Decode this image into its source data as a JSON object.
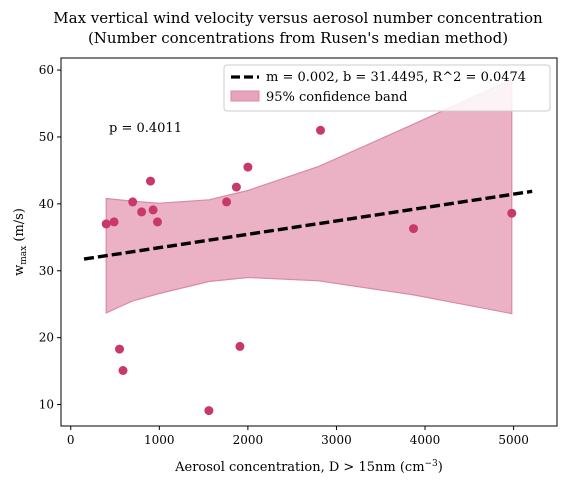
{
  "chart_data": {
    "type": "scatter",
    "title": "Max vertical wind velocity versus aerosol number concentration",
    "subtitle": "(Number concentrations from Rusen's median method)",
    "xlabel": "Aerosol concentration, D > 15nm (cm",
    "xlabel_sup": "−3",
    "xlabel_end": ")",
    "ylabel": "w",
    "ylabel_sub": "max",
    "ylabel_end": " (m/s)",
    "xlim": [
      -110,
      5490
    ],
    "ylim": [
      6.8,
      61.8
    ],
    "xticks": [
      0,
      1000,
      2000,
      3000,
      4000,
      5000
    ],
    "yticks": [
      10,
      20,
      30,
      40,
      50,
      60
    ],
    "grid": false,
    "legend_position": "top-right",
    "annotation": "p = 0.4011",
    "colors": {
      "points": "#c9386a",
      "band_fill": "#e7a3ba",
      "band_edge": "#d98aa5",
      "fit_line": "#000000"
    },
    "scatter_points": [
      {
        "x": 400,
        "y": 37.0
      },
      {
        "x": 490,
        "y": 37.3
      },
      {
        "x": 550,
        "y": 18.3
      },
      {
        "x": 590,
        "y": 15.1
      },
      {
        "x": 700,
        "y": 40.3
      },
      {
        "x": 800,
        "y": 38.8
      },
      {
        "x": 900,
        "y": 43.4
      },
      {
        "x": 930,
        "y": 39.1
      },
      {
        "x": 980,
        "y": 37.3
      },
      {
        "x": 1560,
        "y": 9.1
      },
      {
        "x": 1760,
        "y": 40.3
      },
      {
        "x": 1870,
        "y": 42.5
      },
      {
        "x": 1910,
        "y": 18.7
      },
      {
        "x": 2000,
        "y": 45.5
      },
      {
        "x": 2820,
        "y": 51.0
      },
      {
        "x": 3870,
        "y": 36.3
      },
      {
        "x": 4980,
        "y": 38.6
      }
    ],
    "fit_line": {
      "name": "m = 0.002, b = 31.4495, R^2 = 0.0474",
      "x": [
        150,
        5210
      ],
      "y": [
        31.75,
        41.87
      ]
    },
    "confidence_band": {
      "name": "95% confidence band",
      "x": [
        400,
        700,
        1000,
        1560,
        2000,
        2800,
        3870,
        4980
      ],
      "upper": [
        40.8,
        40.4,
        40.1,
        40.6,
        42.0,
        45.6,
        51.9,
        58.6
      ],
      "lower": [
        23.7,
        25.5,
        26.6,
        28.4,
        29.0,
        28.5,
        26.4,
        23.6
      ]
    }
  }
}
